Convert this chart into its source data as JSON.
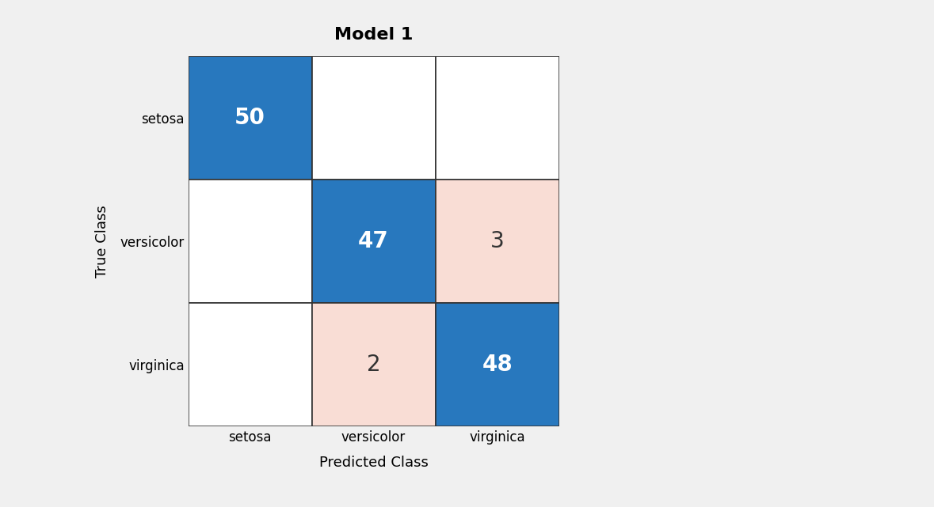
{
  "title": "Model 1",
  "classes": [
    "setosa",
    "versicolor",
    "virginica"
  ],
  "matrix": [
    [
      50,
      0,
      0
    ],
    [
      0,
      47,
      3
    ],
    [
      0,
      2,
      48
    ]
  ],
  "xlabel": "Predicted Class",
  "ylabel": "True Class",
  "correct_color": "#2878BE",
  "incorrect_color_light": "#F9DDD5",
  "zero_color": "#FFFFFF",
  "text_correct_color": "#FFFFFF",
  "text_incorrect_color": "#333333",
  "background_color": "#F0F0F0",
  "plot_bg_color": "#FFFFFF",
  "title_fontsize": 16,
  "label_fontsize": 13,
  "tick_fontsize": 12,
  "cell_fontsize": 20,
  "grid_color": "#333333"
}
